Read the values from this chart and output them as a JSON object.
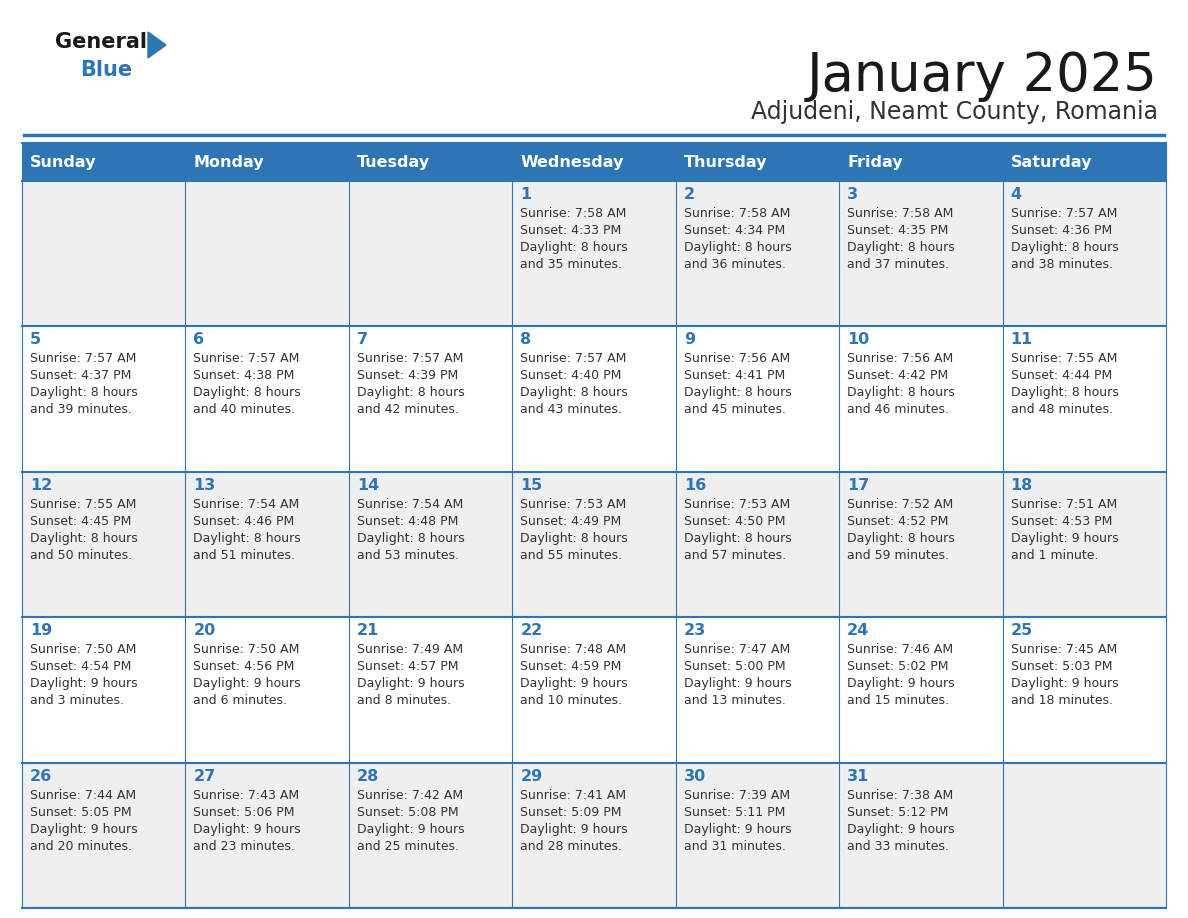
{
  "title": "January 2025",
  "subtitle": "Adjudeni, Neamt County, Romania",
  "days_of_week": [
    "Sunday",
    "Monday",
    "Tuesday",
    "Wednesday",
    "Thursday",
    "Friday",
    "Saturday"
  ],
  "header_bg_color": "#2E75B6",
  "header_text_color": "#FFFFFF",
  "cell_bg_even": "#EFEFEF",
  "cell_bg_odd": "#FFFFFF",
  "title_color": "#1A1A1A",
  "subtitle_color": "#333333",
  "day_number_color": "#2E75B6",
  "cell_text_color": "#333333",
  "grid_line_color": "#2E75B6",
  "logo_text_color": "#1A1A1A",
  "logo_blue_color": "#2E75B6",
  "calendar_data": [
    [
      {
        "day": "",
        "sunrise": "",
        "sunset": "",
        "daylight": ""
      },
      {
        "day": "",
        "sunrise": "",
        "sunset": "",
        "daylight": ""
      },
      {
        "day": "",
        "sunrise": "",
        "sunset": "",
        "daylight": ""
      },
      {
        "day": "1",
        "sunrise": "7:58 AM",
        "sunset": "4:33 PM",
        "daylight": "8 hours\nand 35 minutes."
      },
      {
        "day": "2",
        "sunrise": "7:58 AM",
        "sunset": "4:34 PM",
        "daylight": "8 hours\nand 36 minutes."
      },
      {
        "day": "3",
        "sunrise": "7:58 AM",
        "sunset": "4:35 PM",
        "daylight": "8 hours\nand 37 minutes."
      },
      {
        "day": "4",
        "sunrise": "7:57 AM",
        "sunset": "4:36 PM",
        "daylight": "8 hours\nand 38 minutes."
      }
    ],
    [
      {
        "day": "5",
        "sunrise": "7:57 AM",
        "sunset": "4:37 PM",
        "daylight": "8 hours\nand 39 minutes."
      },
      {
        "day": "6",
        "sunrise": "7:57 AM",
        "sunset": "4:38 PM",
        "daylight": "8 hours\nand 40 minutes."
      },
      {
        "day": "7",
        "sunrise": "7:57 AM",
        "sunset": "4:39 PM",
        "daylight": "8 hours\nand 42 minutes."
      },
      {
        "day": "8",
        "sunrise": "7:57 AM",
        "sunset": "4:40 PM",
        "daylight": "8 hours\nand 43 minutes."
      },
      {
        "day": "9",
        "sunrise": "7:56 AM",
        "sunset": "4:41 PM",
        "daylight": "8 hours\nand 45 minutes."
      },
      {
        "day": "10",
        "sunrise": "7:56 AM",
        "sunset": "4:42 PM",
        "daylight": "8 hours\nand 46 minutes."
      },
      {
        "day": "11",
        "sunrise": "7:55 AM",
        "sunset": "4:44 PM",
        "daylight": "8 hours\nand 48 minutes."
      }
    ],
    [
      {
        "day": "12",
        "sunrise": "7:55 AM",
        "sunset": "4:45 PM",
        "daylight": "8 hours\nand 50 minutes."
      },
      {
        "day": "13",
        "sunrise": "7:54 AM",
        "sunset": "4:46 PM",
        "daylight": "8 hours\nand 51 minutes."
      },
      {
        "day": "14",
        "sunrise": "7:54 AM",
        "sunset": "4:48 PM",
        "daylight": "8 hours\nand 53 minutes."
      },
      {
        "day": "15",
        "sunrise": "7:53 AM",
        "sunset": "4:49 PM",
        "daylight": "8 hours\nand 55 minutes."
      },
      {
        "day": "16",
        "sunrise": "7:53 AM",
        "sunset": "4:50 PM",
        "daylight": "8 hours\nand 57 minutes."
      },
      {
        "day": "17",
        "sunrise": "7:52 AM",
        "sunset": "4:52 PM",
        "daylight": "8 hours\nand 59 minutes."
      },
      {
        "day": "18",
        "sunrise": "7:51 AM",
        "sunset": "4:53 PM",
        "daylight": "9 hours\nand 1 minute."
      }
    ],
    [
      {
        "day": "19",
        "sunrise": "7:50 AM",
        "sunset": "4:54 PM",
        "daylight": "9 hours\nand 3 minutes."
      },
      {
        "day": "20",
        "sunrise": "7:50 AM",
        "sunset": "4:56 PM",
        "daylight": "9 hours\nand 6 minutes."
      },
      {
        "day": "21",
        "sunrise": "7:49 AM",
        "sunset": "4:57 PM",
        "daylight": "9 hours\nand 8 minutes."
      },
      {
        "day": "22",
        "sunrise": "7:48 AM",
        "sunset": "4:59 PM",
        "daylight": "9 hours\nand 10 minutes."
      },
      {
        "day": "23",
        "sunrise": "7:47 AM",
        "sunset": "5:00 PM",
        "daylight": "9 hours\nand 13 minutes."
      },
      {
        "day": "24",
        "sunrise": "7:46 AM",
        "sunset": "5:02 PM",
        "daylight": "9 hours\nand 15 minutes."
      },
      {
        "day": "25",
        "sunrise": "7:45 AM",
        "sunset": "5:03 PM",
        "daylight": "9 hours\nand 18 minutes."
      }
    ],
    [
      {
        "day": "26",
        "sunrise": "7:44 AM",
        "sunset": "5:05 PM",
        "daylight": "9 hours\nand 20 minutes."
      },
      {
        "day": "27",
        "sunrise": "7:43 AM",
        "sunset": "5:06 PM",
        "daylight": "9 hours\nand 23 minutes."
      },
      {
        "day": "28",
        "sunrise": "7:42 AM",
        "sunset": "5:08 PM",
        "daylight": "9 hours\nand 25 minutes."
      },
      {
        "day": "29",
        "sunrise": "7:41 AM",
        "sunset": "5:09 PM",
        "daylight": "9 hours\nand 28 minutes."
      },
      {
        "day": "30",
        "sunrise": "7:39 AM",
        "sunset": "5:11 PM",
        "daylight": "9 hours\nand 31 minutes."
      },
      {
        "day": "31",
        "sunrise": "7:38 AM",
        "sunset": "5:12 PM",
        "daylight": "9 hours\nand 33 minutes."
      },
      {
        "day": "",
        "sunrise": "",
        "sunset": "",
        "daylight": ""
      }
    ]
  ]
}
